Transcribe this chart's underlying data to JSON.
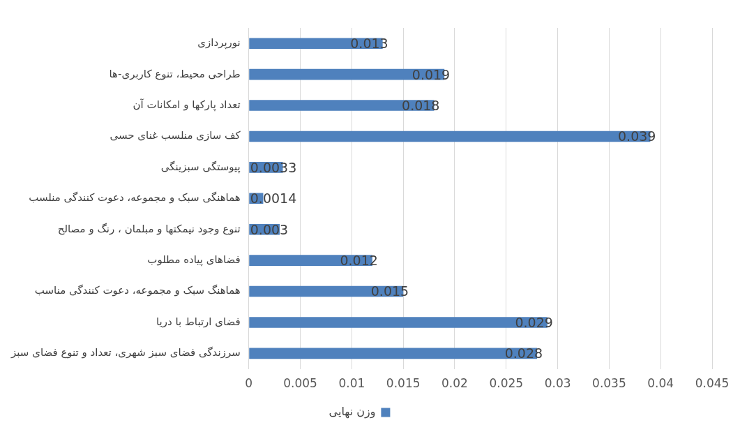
{
  "chart_data": {
    "type": "bar",
    "orientation": "horizontal",
    "categories": [
      "نورپردازی",
      "طراحی محیط، تنوع کاربری-ها",
      "تعداد پارکها و امکانات آن",
      "کف سازی منلسب غنای حسی",
      "پیوستگی سبزینگی",
      "هماهنگی سبک و مجموعه، دعوت کنندگی منلسب",
      "تنوع وجود نیمکتها و مبلمان ، رنگ و مصالح",
      "فضاهای پیاده مطلوب",
      "هماهنگ سبک و مجموعه، دعوت کنندگی مناسب",
      "فضای ارتباط با دریا",
      "سرزندگی فضای سبز شهری، تعداد و تنوع فضای سبز"
    ],
    "series": [
      {
        "name": "وزن نهایی",
        "color": "#4f81bd",
        "values": [
          0.013,
          0.019,
          0.018,
          0.039,
          0.0033,
          0.0014,
          0.003,
          0.012,
          0.015,
          0.029,
          0.028
        ]
      }
    ],
    "xlim": [
      0,
      0.045
    ],
    "xticks": [
      0,
      0.005,
      0.01,
      0.015,
      0.02,
      0.025,
      0.03,
      0.035,
      0.04,
      0.045
    ],
    "grid": "x",
    "legend": "bottom",
    "data_labels": true
  }
}
